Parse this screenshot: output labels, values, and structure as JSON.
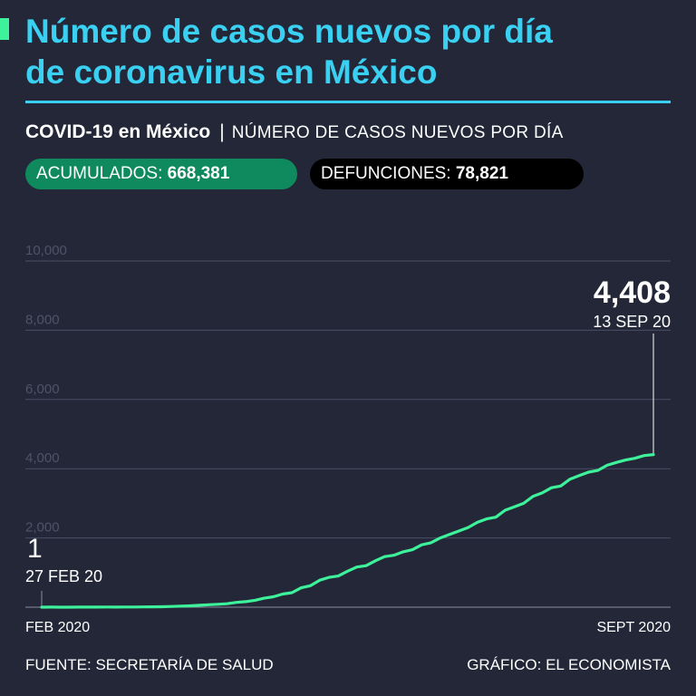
{
  "header": {
    "title_line1": "Número de casos nuevos por día",
    "title_line2": "de coronavirus en México",
    "subtitle_bold": "COVID-19 en México",
    "subtitle_sep": "|",
    "subtitle_light": "NÚMERO DE CASOS NUEVOS POR DÍA"
  },
  "stats": {
    "accum_label": "ACUMULADOS:",
    "accum_value": "668,381",
    "deaths_label": "DEFUNCIONES:",
    "deaths_value": "78,821"
  },
  "colors": {
    "background": "#232738",
    "title": "#3ad0f2",
    "line": "#3df29a",
    "green_pill": "#0f8a5f",
    "black_pill": "#000000"
  },
  "chart_data": {
    "type": "line",
    "title": "Número de casos nuevos por día de coronavirus en México",
    "xlabel": "",
    "ylabel": "",
    "ylim": [
      0,
      10000
    ],
    "yticks": [
      2000,
      4000,
      6000,
      8000,
      10000
    ],
    "ytick_labels": [
      "2,000",
      "4,000",
      "6,000",
      "8,000",
      "10,000"
    ],
    "x_start_label": "FEB 2020",
    "x_end_label": "SEPT 2020",
    "start_annotation": {
      "value_label": "1",
      "date_label": "27 FEB 20",
      "value": 1
    },
    "end_annotation": {
      "value_label": "4,408",
      "date_label": "13 SEP 20",
      "value": 4408
    },
    "grid": true,
    "series": [
      {
        "name": "Casos nuevos por día",
        "x_start": "2020-02-27",
        "x_end": "2020-09-13",
        "values": [
          1,
          2,
          0,
          1,
          2,
          3,
          2,
          4,
          3,
          5,
          6,
          8,
          10,
          14,
          22,
          30,
          40,
          55,
          70,
          85,
          100,
          140,
          160,
          200,
          260,
          300,
          380,
          420,
          560,
          620,
          780,
          860,
          900,
          1040,
          1160,
          1200,
          1340,
          1460,
          1500,
          1600,
          1660,
          1800,
          1860,
          2000,
          2100,
          2200,
          2300,
          2450,
          2550,
          2600,
          2800,
          2900,
          3000,
          3200,
          3300,
          3450,
          3500,
          3700,
          3800,
          3900,
          3950,
          4100,
          4180,
          4250,
          4300,
          4380,
          4408
        ]
      }
    ]
  },
  "footer": {
    "source": "FUENTE: SECRETARÍA DE SALUD",
    "credit": "GRÁFICO: EL ECONOMISTA"
  }
}
